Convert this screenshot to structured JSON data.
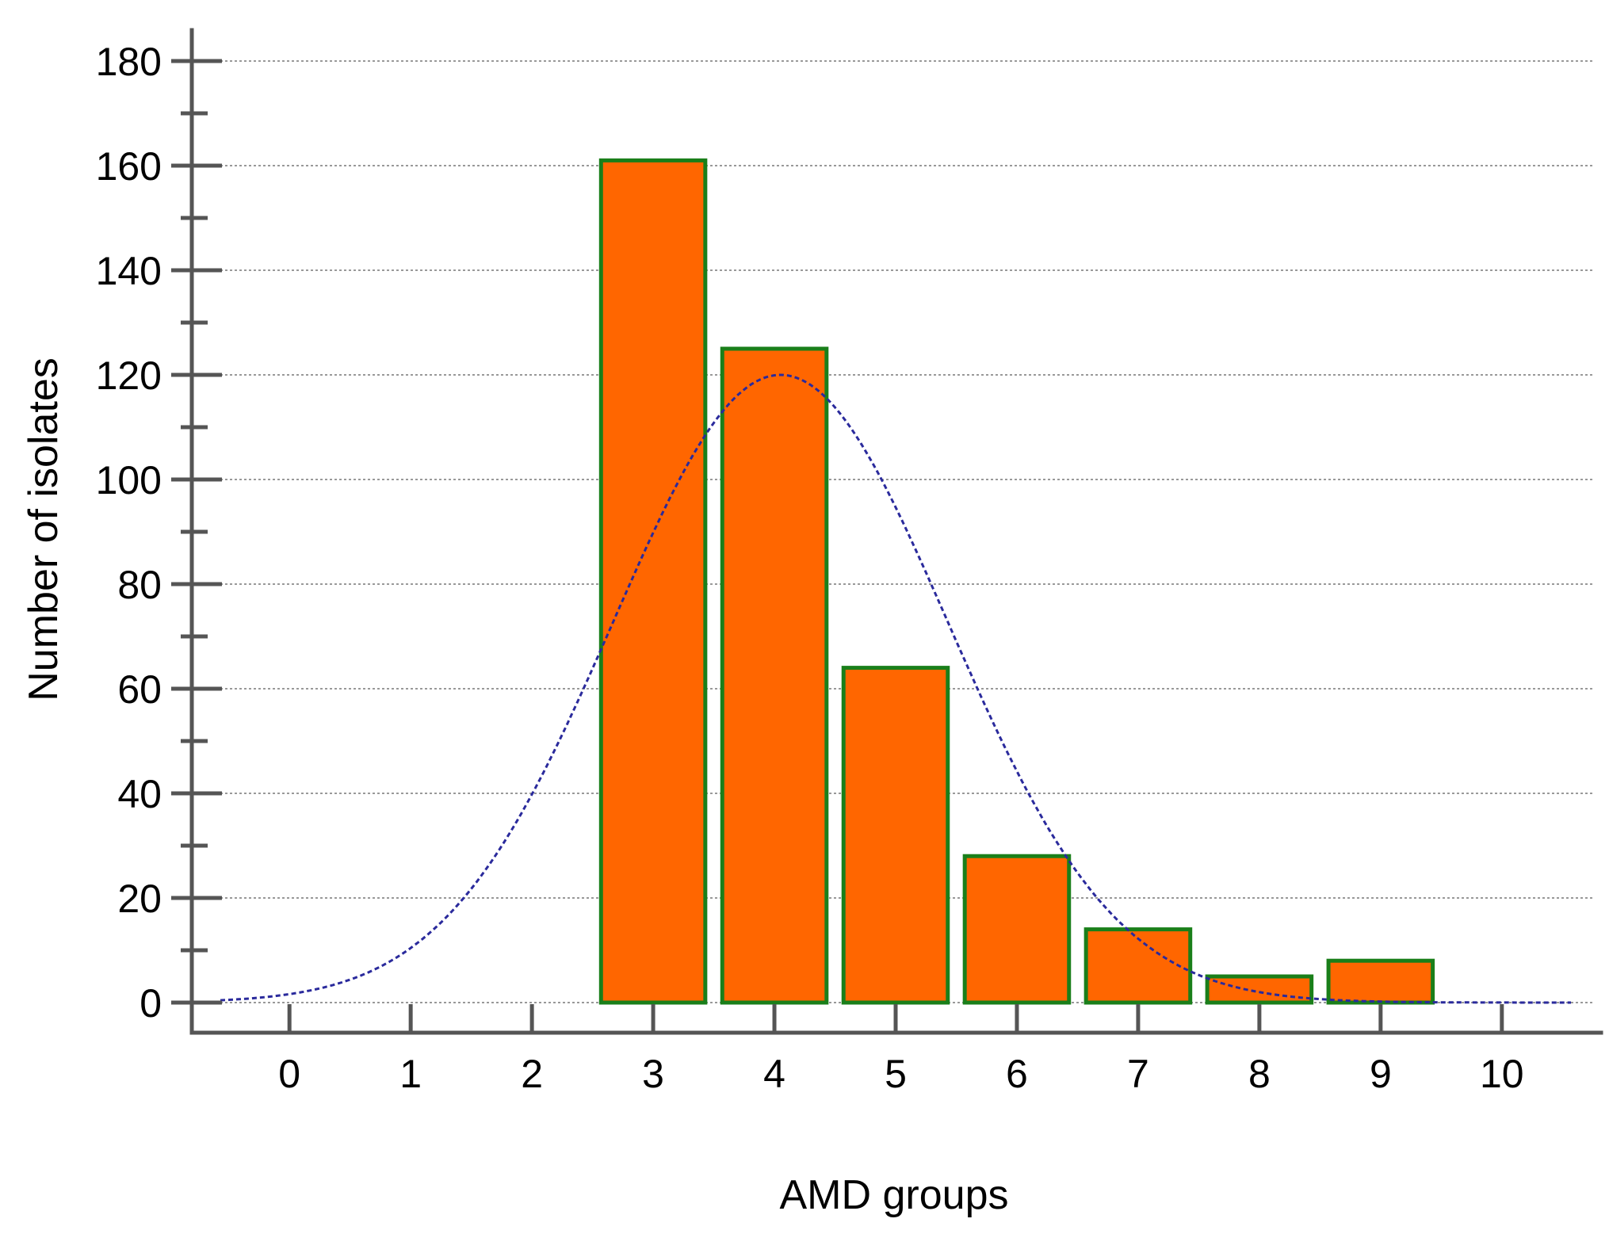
{
  "chart_data": {
    "type": "bar",
    "title": "",
    "xlabel": "AMD groups",
    "ylabel": "Number of isolates",
    "categories": [
      "0",
      "1",
      "2",
      "3",
      "4",
      "5",
      "6",
      "7",
      "8",
      "9",
      "10"
    ],
    "values": [
      0,
      0,
      0,
      161,
      125,
      64,
      28,
      14,
      5,
      8,
      0
    ],
    "x_ticks": [
      "0",
      "1",
      "2",
      "3",
      "4",
      "5",
      "6",
      "7",
      "8",
      "9",
      "10"
    ],
    "y_ticks": [
      "0",
      "20",
      "40",
      "60",
      "80",
      "100",
      "120",
      "140",
      "160",
      "180"
    ],
    "ylim": [
      0,
      180
    ],
    "xlim": [
      -0.57,
      10.57
    ],
    "grid": true,
    "fit_curve": {
      "type": "normal",
      "mean": 4.05,
      "sd": 1.38,
      "peak": 120,
      "x_range": [
        -0.57,
        10.57
      ]
    },
    "colors": {
      "bar_fill": "#FF6600",
      "bar_stroke": "#1A7F1A",
      "curve": "#2A2A9C",
      "axis": "#555555",
      "grid": "#999999"
    }
  }
}
